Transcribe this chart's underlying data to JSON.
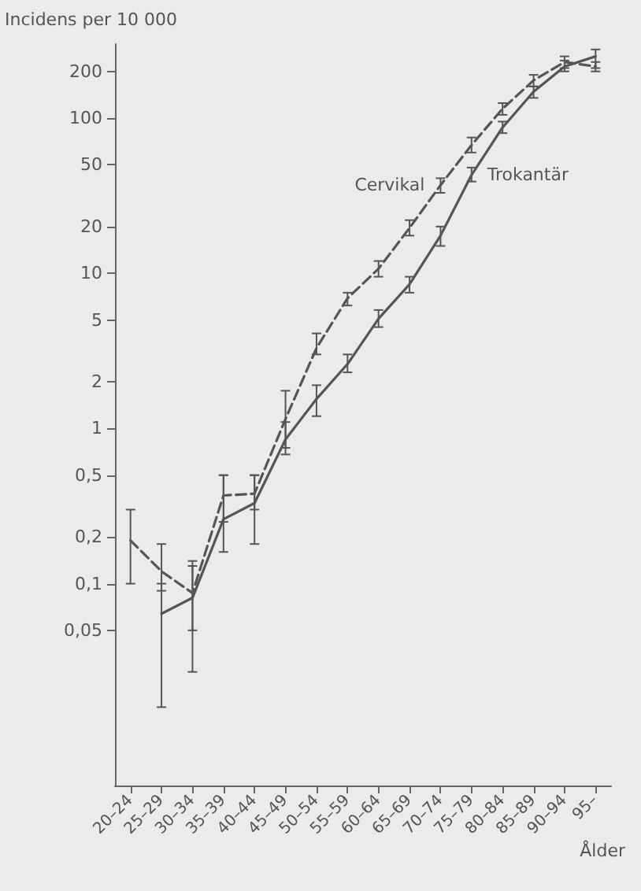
{
  "chart_data": {
    "type": "line",
    "xlabel": "Ålder",
    "ylabel": "Incidens per 10 000",
    "categories": [
      "20–24",
      "25–29",
      "30–34",
      "35–39",
      "40–44",
      "45–49",
      "50–54",
      "55–59",
      "60–64",
      "65–69",
      "70–74",
      "75–79",
      "80–84",
      "85–89",
      "90–94",
      "95–"
    ],
    "series": [
      {
        "name": "Cervikal",
        "color": "#555555",
        "line_style": "dashed",
        "values": [
          0.19,
          0.12,
          0.087,
          0.37,
          0.38,
          1.15,
          3.3,
          6.9,
          10.7,
          19.6,
          37,
          67,
          115,
          175,
          230,
          215
        ],
        "errors": [
          [
            0.1,
            0.3
          ],
          [
            0.09,
            0.18
          ],
          [
            0.05,
            0.13
          ],
          [
            0.25,
            0.5
          ],
          [
            0.3,
            0.5
          ],
          [
            0.75,
            1.75
          ],
          [
            3,
            4.1
          ],
          [
            6.2,
            7.5
          ],
          [
            9.5,
            12
          ],
          [
            17.5,
            22
          ],
          [
            33,
            41
          ],
          [
            60,
            75
          ],
          [
            105,
            125
          ],
          [
            160,
            190
          ],
          [
            210,
            250
          ],
          [
            200,
            230
          ]
        ]
      },
      {
        "name": "Trokantär",
        "color": "#555555",
        "line_style": "solid",
        "values": [
          null,
          0.064,
          0.081,
          0.26,
          0.33,
          0.85,
          1.55,
          2.6,
          5.1,
          8.5,
          17.5,
          43,
          87,
          148,
          215,
          250
        ],
        "errors": [
          null,
          [
            0.016,
            0.1
          ],
          [
            0.027,
            0.14
          ],
          [
            0.16,
            0.5
          ],
          [
            0.18,
            0.5
          ],
          [
            0.68,
            1.1
          ],
          [
            1.2,
            1.9
          ],
          [
            2.3,
            3
          ],
          [
            4.5,
            5.8
          ],
          [
            7.5,
            9.5
          ],
          [
            15,
            20
          ],
          [
            39,
            48
          ],
          [
            80,
            95
          ],
          [
            135,
            160
          ],
          [
            200,
            235
          ],
          [
            210,
            277
          ]
        ]
      }
    ],
    "log": "y",
    "ylim": [
      0.005,
      300
    ],
    "yticks": [
      {
        "value": 0.05,
        "label": "0,05"
      },
      {
        "value": 0.1,
        "label": "0,1"
      },
      {
        "value": 0.2,
        "label": "0,2"
      },
      {
        "value": 0.5,
        "label": "0,5"
      },
      1,
      2,
      5,
      10,
      20,
      50,
      100,
      200
    ],
    "grid": false,
    "legend": false,
    "marker": "none"
  }
}
